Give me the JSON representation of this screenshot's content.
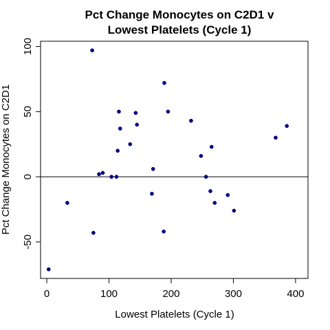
{
  "chart_data": {
    "type": "scatter",
    "title_lines": [
      "Pct Change Monocytes on C2D1 v",
      "Lowest Platelets (Cycle 1)"
    ],
    "xlabel": "Lowest Platelets (Cycle 1)",
    "ylabel": "Pct Change Monocytes on C2D1",
    "xlim": [
      -10,
      420
    ],
    "ylim": [
      -78,
      104
    ],
    "x_ticks": [
      0,
      100,
      200,
      300,
      400
    ],
    "y_ticks": [
      -50,
      0,
      50,
      100
    ],
    "reference_line_y": 0,
    "point_color": "#000080",
    "points": [
      {
        "x": 3,
        "y": -71
      },
      {
        "x": 33,
        "y": -20
      },
      {
        "x": 73,
        "y": 97
      },
      {
        "x": 75,
        "y": -43
      },
      {
        "x": 84,
        "y": 2
      },
      {
        "x": 90,
        "y": 3
      },
      {
        "x": 104,
        "y": 0
      },
      {
        "x": 112,
        "y": 0
      },
      {
        "x": 114,
        "y": 20
      },
      {
        "x": 116,
        "y": 50
      },
      {
        "x": 118,
        "y": 37
      },
      {
        "x": 134,
        "y": 25
      },
      {
        "x": 143,
        "y": 49
      },
      {
        "x": 145,
        "y": 40
      },
      {
        "x": 169,
        "y": -13
      },
      {
        "x": 171,
        "y": 6
      },
      {
        "x": 188,
        "y": -42
      },
      {
        "x": 189,
        "y": 72
      },
      {
        "x": 195,
        "y": 50
      },
      {
        "x": 232,
        "y": 43
      },
      {
        "x": 248,
        "y": 16
      },
      {
        "x": 256,
        "y": 0
      },
      {
        "x": 263,
        "y": -11
      },
      {
        "x": 265,
        "y": 23
      },
      {
        "x": 270,
        "y": -20
      },
      {
        "x": 291,
        "y": -14
      },
      {
        "x": 301,
        "y": -26
      },
      {
        "x": 368,
        "y": 30
      },
      {
        "x": 386,
        "y": 39
      }
    ]
  }
}
